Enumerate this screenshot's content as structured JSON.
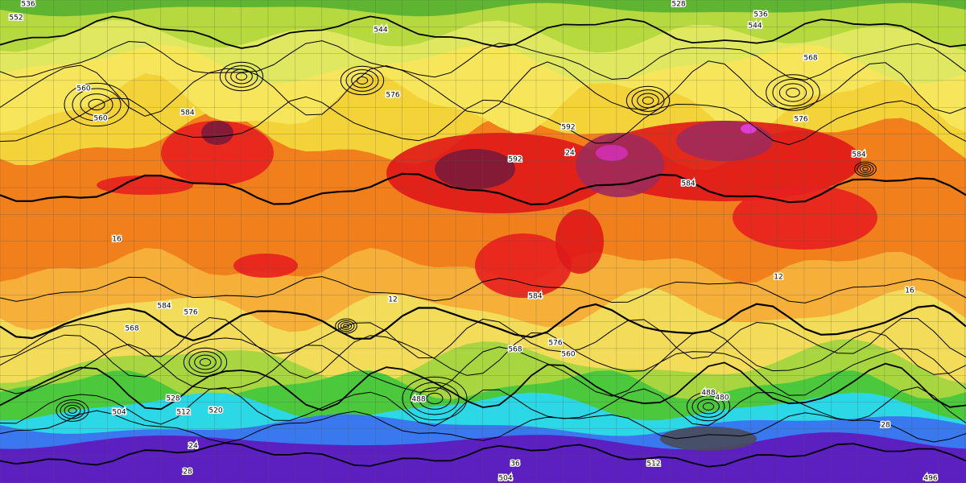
{
  "contour_labels": [
    536,
    552,
    544,
    528,
    536,
    544,
    560,
    568,
    576,
    584,
    560,
    576,
    592,
    584,
    592,
    584,
    12,
    16,
    24,
    16,
    12,
    584,
    576,
    568,
    584,
    568,
    576,
    560,
    488,
    504,
    520,
    528,
    512,
    496,
    504,
    28,
    36,
    512,
    24,
    28,
    480,
    488
  ]
}
